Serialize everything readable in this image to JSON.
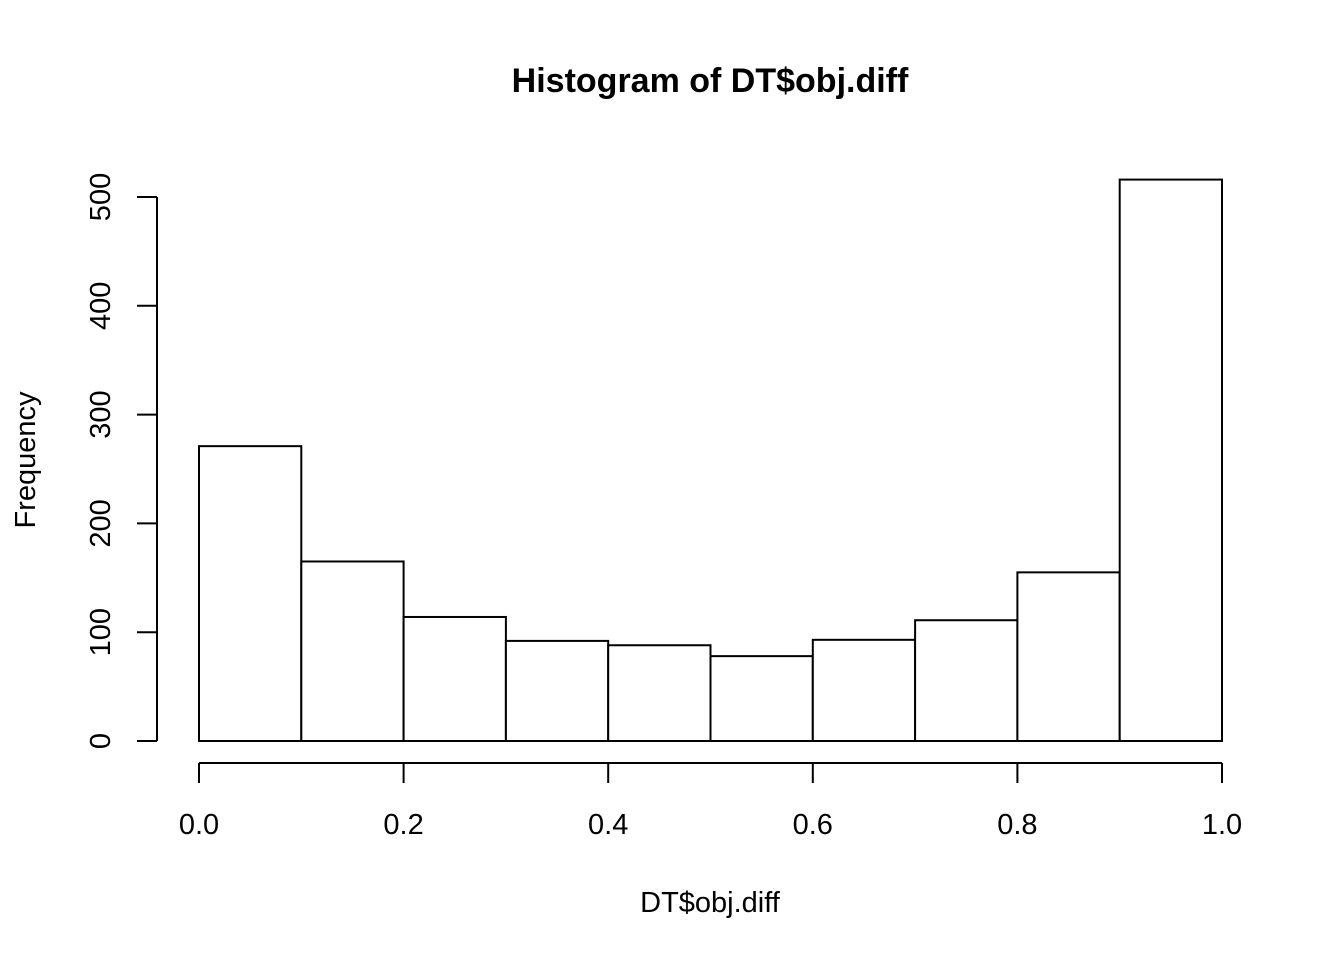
{
  "chart_data": {
    "type": "bar",
    "title": "Histogram of DT$obj.diff",
    "xlabel": "DT$obj.diff",
    "ylabel": "Frequency",
    "bins": [
      {
        "from": 0.0,
        "to": 0.1,
        "count": 271
      },
      {
        "from": 0.1,
        "to": 0.2,
        "count": 165
      },
      {
        "from": 0.2,
        "to": 0.3,
        "count": 114
      },
      {
        "from": 0.3,
        "to": 0.4,
        "count": 92
      },
      {
        "from": 0.4,
        "to": 0.5,
        "count": 88
      },
      {
        "from": 0.5,
        "to": 0.6,
        "count": 78
      },
      {
        "from": 0.6,
        "to": 0.7,
        "count": 93
      },
      {
        "from": 0.7,
        "to": 0.8,
        "count": 111
      },
      {
        "from": 0.8,
        "to": 0.9,
        "count": 155
      },
      {
        "from": 0.9,
        "to": 1.0,
        "count": 516
      }
    ],
    "x_ticks": [
      {
        "value": 0.0,
        "label": "0.0"
      },
      {
        "value": 0.2,
        "label": "0.2"
      },
      {
        "value": 0.4,
        "label": "0.4"
      },
      {
        "value": 0.6,
        "label": "0.6"
      },
      {
        "value": 0.8,
        "label": "0.8"
      },
      {
        "value": 1.0,
        "label": "1.0"
      }
    ],
    "y_ticks": [
      {
        "value": 0,
        "label": "0"
      },
      {
        "value": 100,
        "label": "100"
      },
      {
        "value": 200,
        "label": "200"
      },
      {
        "value": 300,
        "label": "300"
      },
      {
        "value": 400,
        "label": "400"
      },
      {
        "value": 500,
        "label": "500"
      }
    ],
    "xlim": [
      0.0,
      1.0
    ],
    "ylim": [
      0,
      500
    ],
    "grid": false,
    "legend": "none",
    "colors": {
      "bar_fill": "#ffffff",
      "bar_stroke": "#000000",
      "axis": "#000000",
      "text": "#000000"
    }
  }
}
